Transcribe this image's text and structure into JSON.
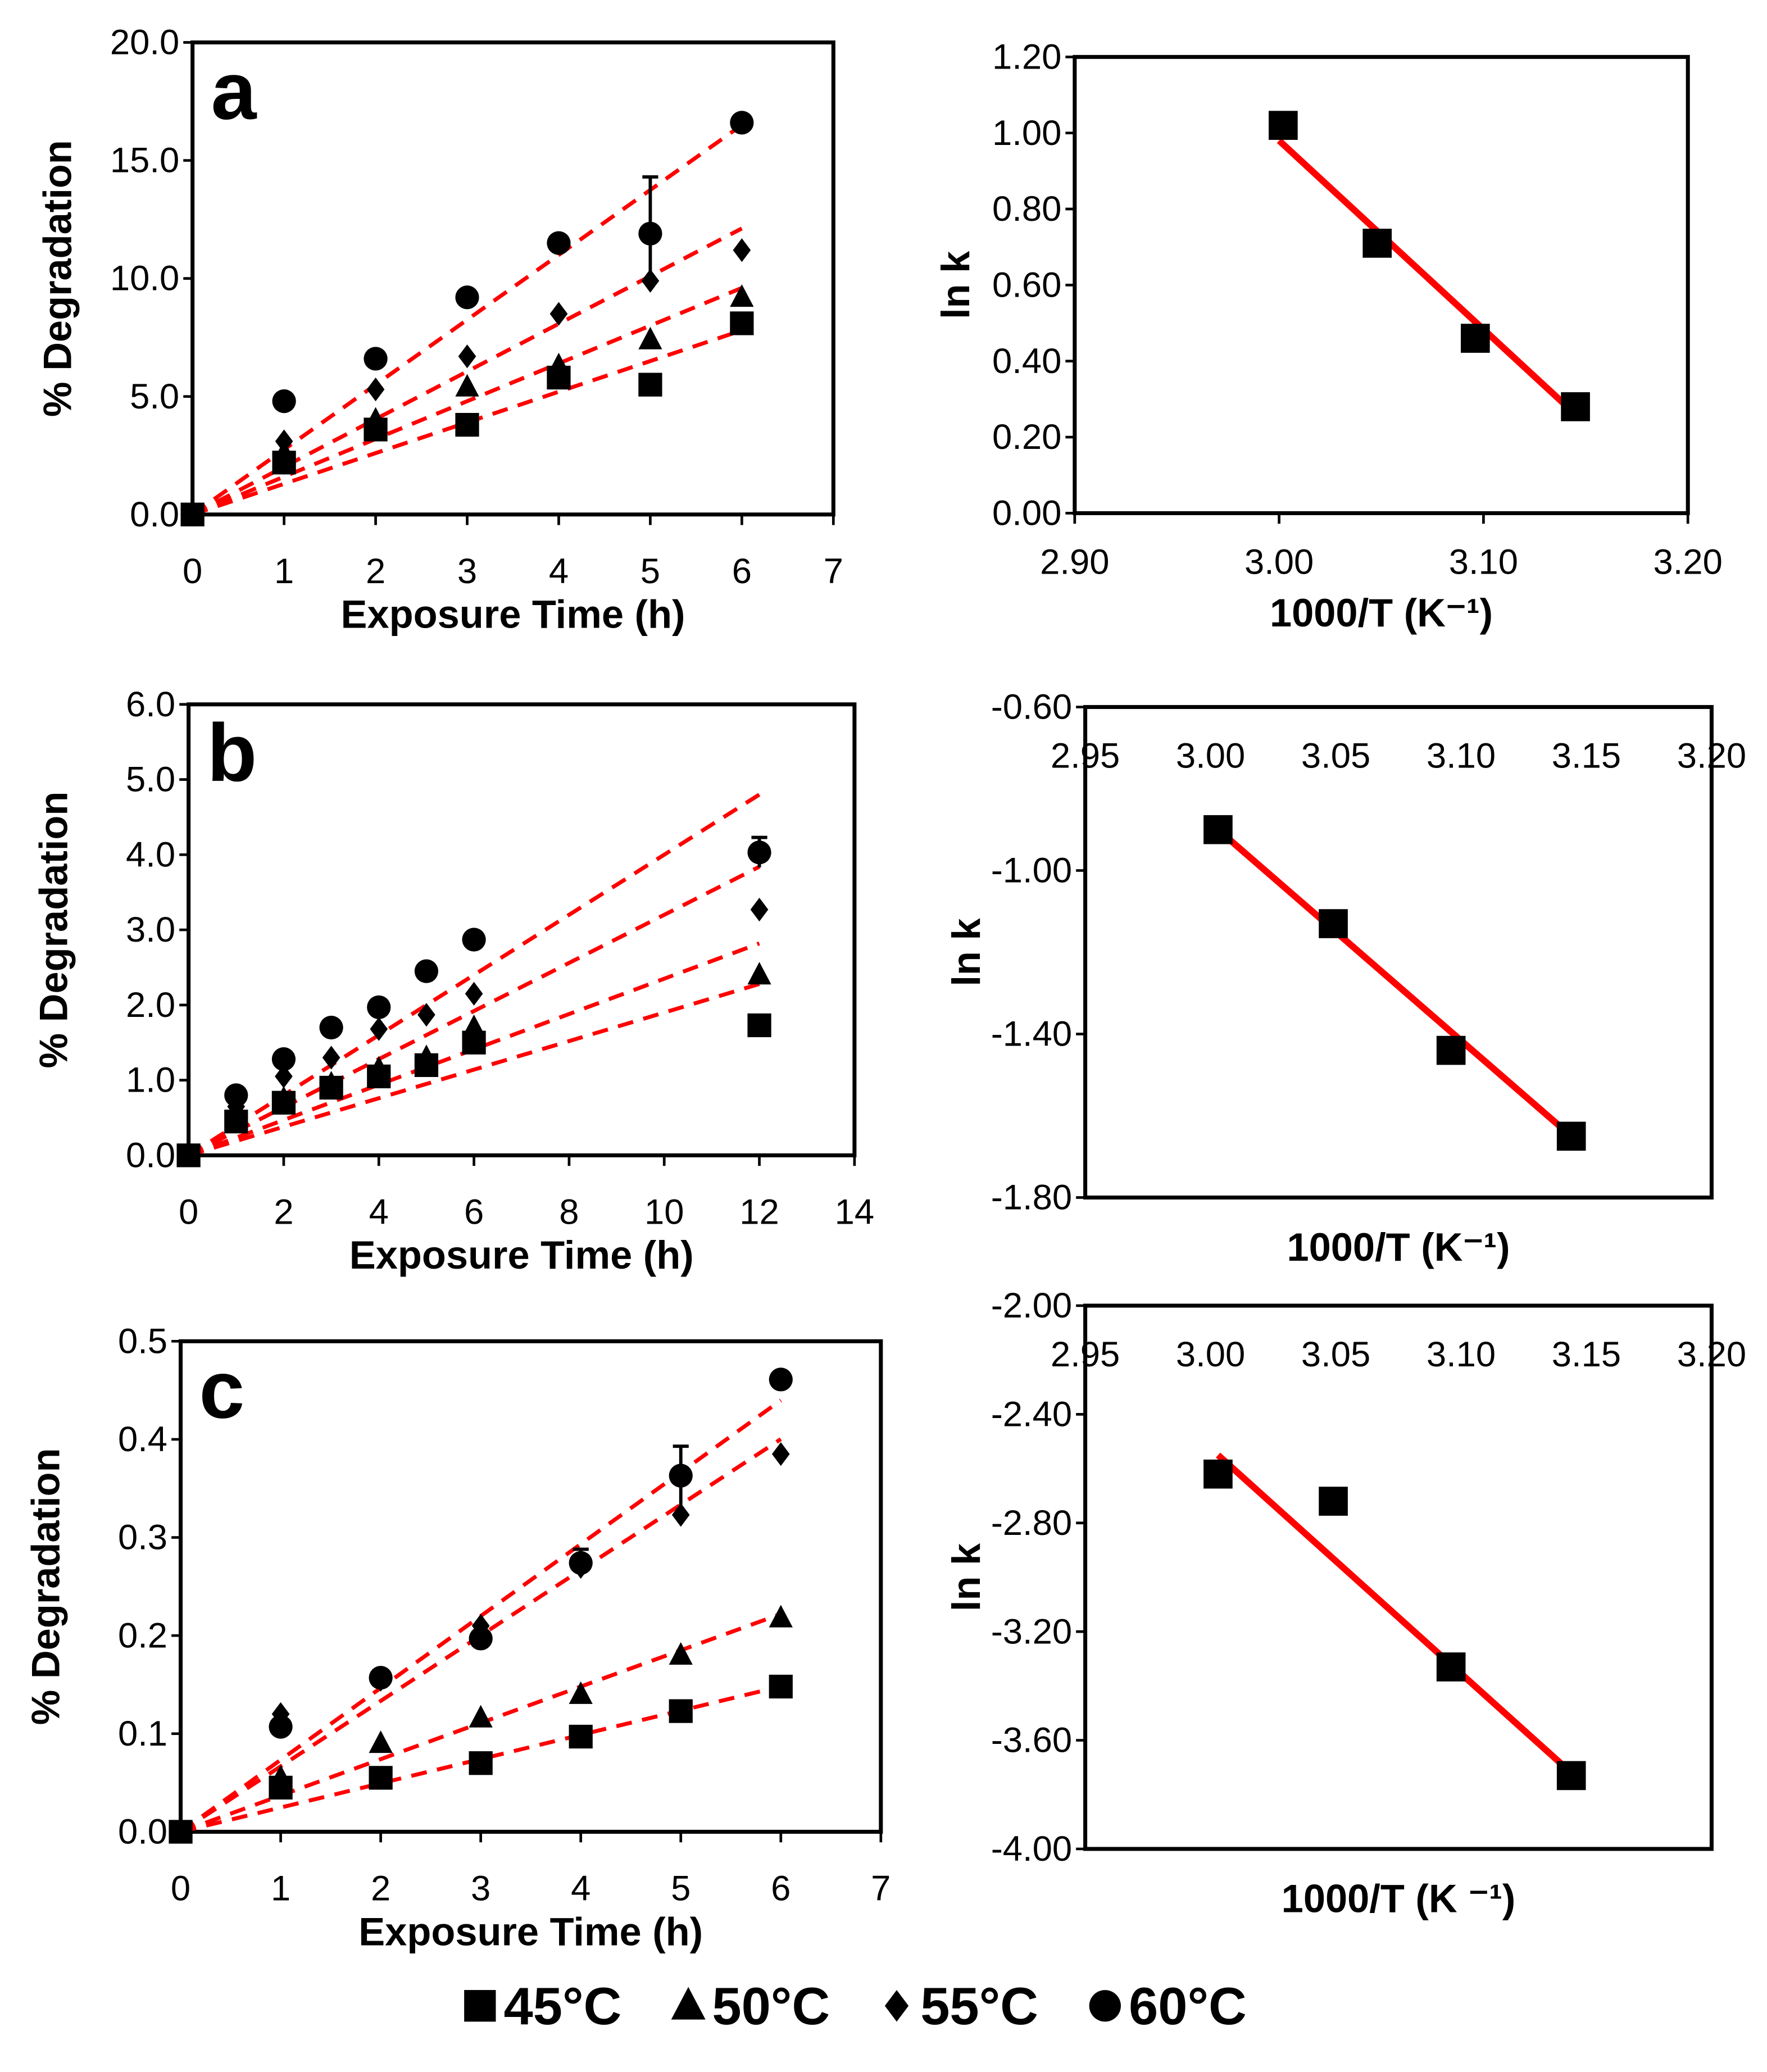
{
  "chart_data": [
    {
      "id": "a",
      "type": "scatter",
      "panel_label": "a",
      "xlabel": "Exposure Time (h)",
      "ylabel": "% Degradation",
      "xlim": [
        0,
        7
      ],
      "ylim": [
        0,
        20
      ],
      "xticks": [
        "0",
        "1",
        "2",
        "3",
        "4",
        "5",
        "6",
        "7"
      ],
      "yticks": [
        "0.0",
        "5.0",
        "10.0",
        "15.0",
        "20.0"
      ],
      "x": [
        0,
        1,
        2,
        3,
        4,
        5,
        6
      ],
      "series": [
        {
          "name": "45°C",
          "marker": "square",
          "values": [
            0,
            2.2,
            3.6,
            3.8,
            5.8,
            5.5,
            8.1
          ],
          "fit_slope": 1.3
        },
        {
          "name": "50°C",
          "marker": "triangle",
          "values": [
            0,
            2.6,
            4.0,
            5.4,
            6.3,
            7.4,
            9.2
          ],
          "fit_slope": 1.6
        },
        {
          "name": "55°C",
          "marker": "diamond",
          "values": [
            0,
            3.1,
            5.3,
            6.7,
            8.5,
            9.9,
            11.2
          ],
          "fit_slope": 2.02
        },
        {
          "name": "60°C",
          "marker": "circle",
          "values": [
            0,
            4.8,
            6.6,
            9.2,
            11.5,
            11.9,
            16.6
          ],
          "fit_slope": 2.75,
          "errors": [
            0,
            0,
            0,
            0,
            0,
            2.4,
            0
          ]
        }
      ]
    },
    {
      "id": "a-arrhenius",
      "type": "scatter",
      "xlabel": "1000/T (K⁻¹)",
      "ylabel": "ln k",
      "xlim": [
        2.9,
        3.2
      ],
      "ylim": [
        0.0,
        1.2
      ],
      "x_axis_position": "bottom",
      "xticks": [
        "2.90",
        "3.00",
        "3.10",
        "3.20"
      ],
      "yticks": [
        "0.00",
        "0.20",
        "0.40",
        "0.60",
        "0.80",
        "1.00",
        "1.20"
      ],
      "x": [
        3.002,
        3.048,
        3.096,
        3.145
      ],
      "y": [
        1.02,
        0.71,
        0.46,
        0.28
      ],
      "fit": [
        [
          3.0,
          0.98
        ],
        [
          3.145,
          0.26
        ]
      ]
    },
    {
      "id": "b",
      "type": "scatter",
      "panel_label": "b",
      "xlabel": "Exposure Time (h)",
      "ylabel": "% Degradation",
      "xlim": [
        0,
        14
      ],
      "ylim": [
        0,
        6
      ],
      "xticks": [
        "0",
        "2",
        "4",
        "6",
        "8",
        "10",
        "12",
        "14"
      ],
      "yticks": [
        "0.0",
        "1.0",
        "2.0",
        "3.0",
        "4.0",
        "5.0",
        "6.0"
      ],
      "x": [
        0,
        1,
        2,
        3,
        4,
        5,
        6,
        12
      ],
      "series": [
        {
          "name": "45°C",
          "marker": "square",
          "values": [
            0,
            0.45,
            0.7,
            0.9,
            1.05,
            1.2,
            1.5,
            1.73
          ],
          "fit_slope": 0.19
        },
        {
          "name": "50°C",
          "marker": "triangle",
          "values": [
            0,
            0.55,
            0.75,
            0.95,
            1.15,
            1.3,
            1.7,
            2.4
          ],
          "fit_slope": 0.235
        },
        {
          "name": "55°C",
          "marker": "diamond",
          "values": [
            0,
            0.65,
            1.05,
            1.3,
            1.68,
            1.87,
            2.15,
            3.27
          ],
          "fit_slope": 0.32
        },
        {
          "name": "60°C",
          "marker": "circle",
          "values": [
            0,
            0.8,
            1.28,
            1.7,
            1.97,
            2.45,
            2.87,
            4.03
          ],
          "fit_slope": 0.4,
          "errors": [
            0,
            0,
            0,
            0,
            0,
            0,
            0,
            0.2
          ]
        }
      ]
    },
    {
      "id": "b-arrhenius",
      "type": "scatter",
      "xlabel": "1000/T (K⁻¹)",
      "ylabel": "ln k",
      "xlim": [
        2.95,
        3.2
      ],
      "ylim": [
        -1.8,
        -0.6
      ],
      "x_axis_position": "top",
      "xticks": [
        "2.95",
        "3.00",
        "3.05",
        "3.10",
        "3.15",
        "3.20"
      ],
      "yticks": [
        "-1.80",
        "-1.40",
        "-1.00",
        "-0.60"
      ],
      "x": [
        3.003,
        3.049,
        3.096,
        3.144
      ],
      "y": [
        -0.9,
        -1.13,
        -1.44,
        -1.65
      ],
      "fit": [
        [
          3.003,
          -0.9
        ],
        [
          3.144,
          -1.65
        ]
      ]
    },
    {
      "id": "c",
      "type": "scatter",
      "panel_label": "c",
      "xlabel": "Exposure Time (h)",
      "ylabel": "% Degradation",
      "xlim": [
        0,
        7
      ],
      "ylim": [
        0,
        0.5
      ],
      "xticks": [
        "0",
        "1",
        "2",
        "3",
        "4",
        "5",
        "6",
        "7"
      ],
      "yticks": [
        "0.0",
        "0.1",
        "0.2",
        "0.3",
        "0.4",
        "0.5"
      ],
      "x": [
        0,
        1,
        2,
        3,
        4,
        5,
        6
      ],
      "series": [
        {
          "name": "45°C",
          "marker": "square",
          "values": [
            0,
            0.045,
            0.055,
            0.07,
            0.097,
            0.123,
            0.148
          ],
          "fit_slope": 0.0247
        },
        {
          "name": "50°C",
          "marker": "triangle",
          "values": [
            0,
            0.055,
            0.09,
            0.116,
            0.14,
            0.18,
            0.218
          ],
          "fit_slope": 0.037
        },
        {
          "name": "55°C",
          "marker": "diamond",
          "values": [
            0,
            0.12,
            0.155,
            0.21,
            0.27,
            0.323,
            0.385
          ],
          "fit_slope": 0.0667
        },
        {
          "name": "60°C",
          "marker": "circle",
          "values": [
            0,
            0.107,
            0.157,
            0.197,
            0.274,
            0.363,
            0.461
          ],
          "fit_slope": 0.0733,
          "errors": [
            0,
            0,
            0,
            0,
            0.014,
            0.03,
            0
          ]
        }
      ]
    },
    {
      "id": "c-arrhenius",
      "type": "scatter",
      "xlabel": "1000/T (K ⁻¹)",
      "ylabel": "ln k",
      "xlim": [
        2.95,
        3.2
      ],
      "ylim": [
        -4.0,
        -2.0
      ],
      "x_axis_position": "top",
      "xticks": [
        "2.95",
        "3.00",
        "3.05",
        "3.10",
        "3.15",
        "3.20"
      ],
      "yticks": [
        "-4.00",
        "-3.60",
        "-3.20",
        "-2.80",
        "-2.40",
        "-2.00"
      ],
      "x": [
        3.003,
        3.049,
        3.096,
        3.144
      ],
      "y": [
        -2.62,
        -2.72,
        -3.33,
        -3.73
      ],
      "fit": [
        [
          3.003,
          -2.55
        ],
        [
          3.144,
          -3.72
        ]
      ]
    }
  ],
  "legend": {
    "placement": "bottom",
    "items": [
      {
        "label": "45°C",
        "marker": "square"
      },
      {
        "label": "50°C",
        "marker": "triangle"
      },
      {
        "label": "55°C",
        "marker": "diamond"
      },
      {
        "label": "60°C",
        "marker": "circle"
      }
    ]
  },
  "colors": {
    "fit": "#ff0000",
    "marker": "#000000"
  }
}
